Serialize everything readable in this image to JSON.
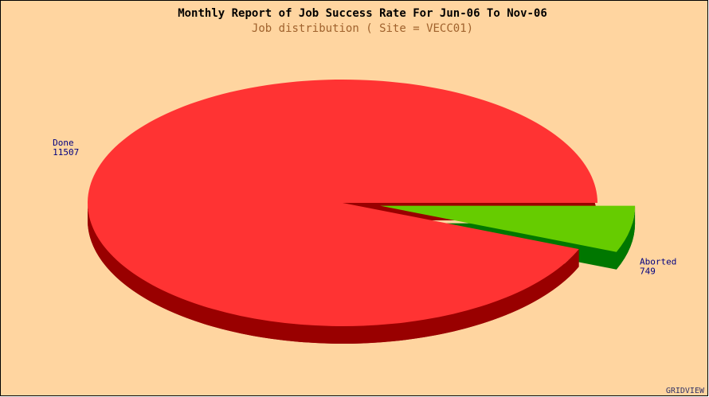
{
  "chart_data": {
    "type": "pie",
    "title": "Monthly Report of Job Success Rate For Jun-06 To Nov-06",
    "subtitle": "Job distribution ( Site = VECC01)",
    "categories": [
      "Done",
      "Aborted"
    ],
    "values": [
      11507,
      749
    ],
    "colors": [
      "#ff3333",
      "#66cc00"
    ],
    "side_colors": [
      "#990000",
      "#007700"
    ],
    "watermark": "GRIDVIEW"
  }
}
